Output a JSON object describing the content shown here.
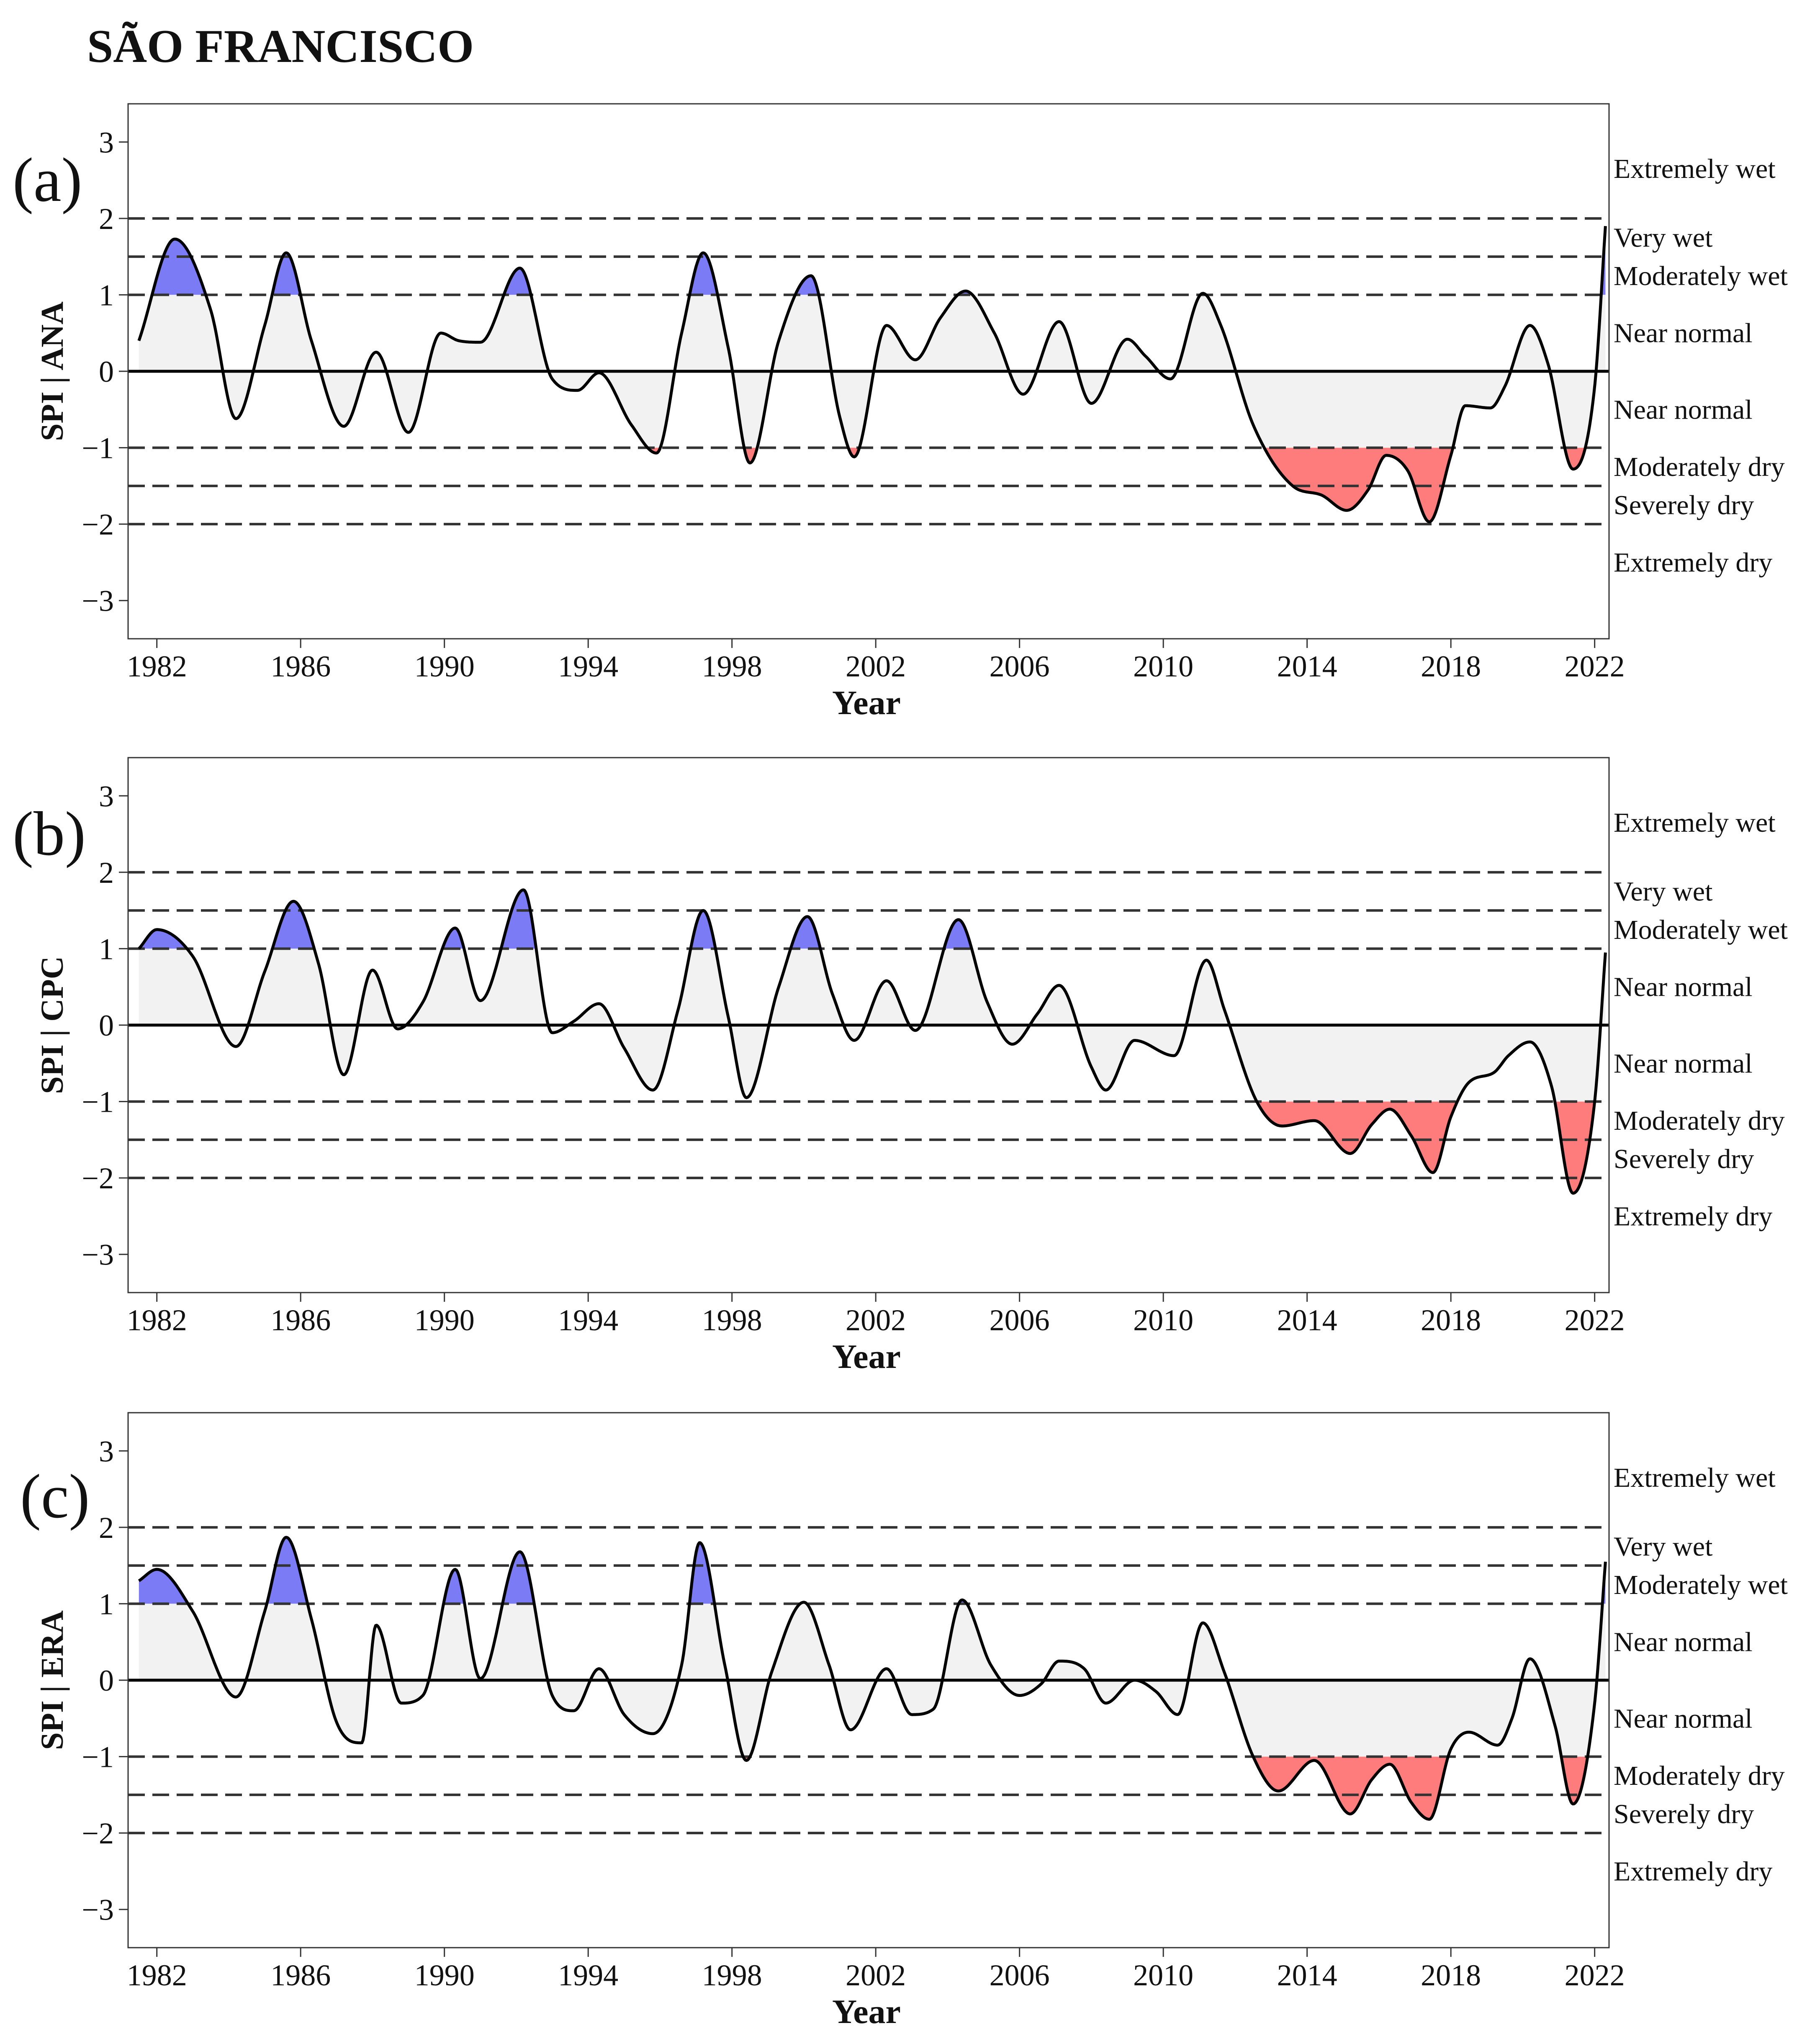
{
  "title": "SÃO FRANCISCO",
  "colors": {
    "wet_fill": "#7b7bf6",
    "dry_fill": "#ff7c7c",
    "normal_fill": "#f2f2f2",
    "line": "#000000"
  },
  "chart_data": [
    {
      "type": "area",
      "panel_label": "(a)",
      "ylabel": "SPI | ANA",
      "xlabel": "Year",
      "xlim": [
        1981.2,
        2022.4
      ],
      "ylim": [
        -3.5,
        3.5
      ],
      "xticks": [
        "1982",
        "1986",
        "1990",
        "1994",
        "1998",
        "2002",
        "2006",
        "2010",
        "2014",
        "2018",
        "2022"
      ],
      "yticks": [
        "3",
        "2",
        "1",
        "0",
        "−1",
        "−2",
        "−3"
      ],
      "thresholds": [
        2,
        1.5,
        1,
        0,
        -1,
        -1.5,
        -2
      ],
      "categories": [
        "Extremely wet",
        "Very wet",
        "Moderately wet",
        "Near normal",
        "Near normal",
        "Moderately dry",
        "Severely dry",
        "Extremely dry"
      ],
      "series": [
        {
          "name": "SPI",
          "x": [
            1981.5,
            1982.5,
            1983.5,
            1984.2,
            1985.0,
            1985.6,
            1986.3,
            1987.2,
            1988.1,
            1989.0,
            1989.9,
            1990.4,
            1991.0,
            1992.1,
            1993.0,
            1993.7,
            1994.3,
            1995.2,
            1995.9,
            1996.6,
            1997.2,
            1997.9,
            1998.5,
            1999.3,
            2000.2,
            2001.0,
            2001.4,
            2002.3,
            2003.1,
            2003.8,
            2004.5,
            2005.3,
            2006.1,
            2007.1,
            2008.0,
            2009.0,
            2009.5,
            2010.2,
            2011.1,
            2011.6,
            2012.5,
            2013.6,
            2014.4,
            2015.1,
            2015.7,
            2016.2,
            2016.8,
            2017.4,
            2018.0,
            2018.4,
            2019.1,
            2019.5,
            2020.2,
            2020.7,
            2021.4,
            2022.0,
            2022.3
          ],
          "values": [
            0.4,
            1.73,
            0.8,
            -0.62,
            0.6,
            1.55,
            0.4,
            -0.72,
            0.25,
            -0.8,
            0.5,
            0.4,
            0.38,
            1.35,
            -0.1,
            -0.25,
            -0.02,
            -0.7,
            -1.07,
            0.5,
            1.55,
            0.3,
            -1.2,
            0.4,
            1.25,
            -0.6,
            -1.12,
            0.6,
            0.15,
            0.7,
            1.05,
            0.5,
            -0.3,
            0.65,
            -0.42,
            0.42,
            0.2,
            -0.1,
            1.02,
            0.6,
            -0.7,
            -1.5,
            -1.62,
            -1.82,
            -1.55,
            -1.1,
            -1.3,
            -1.97,
            -1.1,
            -0.45,
            -0.48,
            -0.2,
            0.6,
            0.1,
            -1.28,
            -0.2,
            1.9
          ]
        }
      ]
    },
    {
      "type": "area",
      "panel_label": "(b)",
      "ylabel": "SPI | CPC",
      "xlabel": "Year",
      "xlim": [
        1981.2,
        2022.4
      ],
      "ylim": [
        -3.5,
        3.5
      ],
      "xticks": [
        "1982",
        "1986",
        "1990",
        "1994",
        "1998",
        "2002",
        "2006",
        "2010",
        "2014",
        "2018",
        "2022"
      ],
      "yticks": [
        "3",
        "2",
        "1",
        "0",
        "−1",
        "−2",
        "−3"
      ],
      "thresholds": [
        2,
        1.5,
        1,
        0,
        -1,
        -1.5,
        -2
      ],
      "categories": [
        "Extremely wet",
        "Very wet",
        "Moderately wet",
        "Near normal",
        "Near normal",
        "Moderately dry",
        "Severely dry",
        "Extremely dry"
      ],
      "series": [
        {
          "name": "SPI",
          "x": [
            1981.5,
            1982.0,
            1983.0,
            1984.2,
            1985.0,
            1985.8,
            1986.5,
            1987.2,
            1988.0,
            1988.7,
            1989.4,
            1990.3,
            1991.0,
            1992.2,
            1993.0,
            1993.6,
            1994.3,
            1995.0,
            1995.8,
            1996.5,
            1997.2,
            1997.9,
            1998.4,
            1999.3,
            2000.1,
            2000.8,
            2001.4,
            2002.3,
            2003.1,
            2004.3,
            2005.1,
            2005.8,
            2006.5,
            2007.1,
            2008.0,
            2008.4,
            2009.2,
            2010.3,
            2011.2,
            2011.7,
            2012.6,
            2013.3,
            2014.2,
            2015.2,
            2015.8,
            2016.3,
            2016.9,
            2017.5,
            2018.0,
            2018.5,
            2019.2,
            2019.6,
            2020.2,
            2020.8,
            2021.4,
            2022.0,
            2022.3
          ],
          "values": [
            1.0,
            1.25,
            0.9,
            -0.28,
            0.7,
            1.62,
            0.8,
            -0.65,
            0.72,
            -0.05,
            0.3,
            1.27,
            0.32,
            1.77,
            -0.1,
            0.05,
            0.28,
            -0.3,
            -0.85,
            0.2,
            1.5,
            0.1,
            -0.95,
            0.5,
            1.42,
            0.4,
            -0.2,
            0.58,
            -0.07,
            1.38,
            0.3,
            -0.25,
            0.15,
            0.52,
            -0.55,
            -0.85,
            -0.2,
            -0.4,
            0.85,
            0.2,
            -1.0,
            -1.32,
            -1.25,
            -1.68,
            -1.3,
            -1.1,
            -1.45,
            -1.93,
            -1.2,
            -0.75,
            -0.62,
            -0.4,
            -0.22,
            -0.8,
            -2.2,
            -1.0,
            0.95
          ]
        }
      ]
    },
    {
      "type": "area",
      "panel_label": "(c)",
      "ylabel": "SPI | ERA",
      "xlabel": "Year",
      "xlim": [
        1981.2,
        2022.4
      ],
      "ylim": [
        -3.5,
        3.5
      ],
      "xticks": [
        "1982",
        "1986",
        "1990",
        "1994",
        "1998",
        "2002",
        "2006",
        "2010",
        "2014",
        "2018",
        "2022"
      ],
      "yticks": [
        "3",
        "2",
        "1",
        "0",
        "−1",
        "−2",
        "−3"
      ],
      "thresholds": [
        2,
        1.5,
        1,
        0,
        -1,
        -1.5,
        -2
      ],
      "categories": [
        "Extremely wet",
        "Very wet",
        "Moderately wet",
        "Near normal",
        "Near normal",
        "Moderately dry",
        "Severely dry",
        "Extremely dry"
      ],
      "series": [
        {
          "name": "SPI",
          "x": [
            1981.5,
            1982.0,
            1983.0,
            1984.2,
            1985.0,
            1985.6,
            1986.3,
            1987.0,
            1987.7,
            1988.1,
            1988.8,
            1989.4,
            1990.3,
            1991.0,
            1992.1,
            1993.0,
            1993.6,
            1994.3,
            1995.0,
            1995.8,
            1996.6,
            1997.1,
            1997.8,
            1998.4,
            1999.1,
            2000.0,
            2000.7,
            2001.3,
            2002.3,
            2003.0,
            2003.6,
            2004.4,
            2005.2,
            2006.0,
            2006.6,
            2007.1,
            2007.8,
            2008.4,
            2009.2,
            2009.8,
            2010.4,
            2011.1,
            2011.7,
            2012.5,
            2013.2,
            2014.2,
            2015.2,
            2015.8,
            2016.3,
            2016.9,
            2017.4,
            2018.0,
            2018.5,
            2019.3,
            2019.7,
            2020.2,
            2020.9,
            2021.4,
            2022.0,
            2022.3
          ],
          "values": [
            1.3,
            1.45,
            0.9,
            -0.22,
            0.9,
            1.87,
            0.8,
            -0.55,
            -0.82,
            0.72,
            -0.3,
            -0.2,
            1.45,
            0.02,
            1.68,
            -0.2,
            -0.4,
            0.15,
            -0.45,
            -0.7,
            0.2,
            1.8,
            0.2,
            -1.05,
            0.1,
            1.02,
            0.2,
            -0.65,
            0.15,
            -0.45,
            -0.38,
            1.05,
            0.2,
            -0.2,
            -0.05,
            0.25,
            0.15,
            -0.3,
            0.0,
            -0.15,
            -0.45,
            0.75,
            0.1,
            -1.0,
            -1.45,
            -1.05,
            -1.75,
            -1.3,
            -1.1,
            -1.6,
            -1.82,
            -0.9,
            -0.68,
            -0.85,
            -0.5,
            0.28,
            -0.6,
            -1.62,
            -0.3,
            1.55
          ]
        }
      ]
    }
  ]
}
